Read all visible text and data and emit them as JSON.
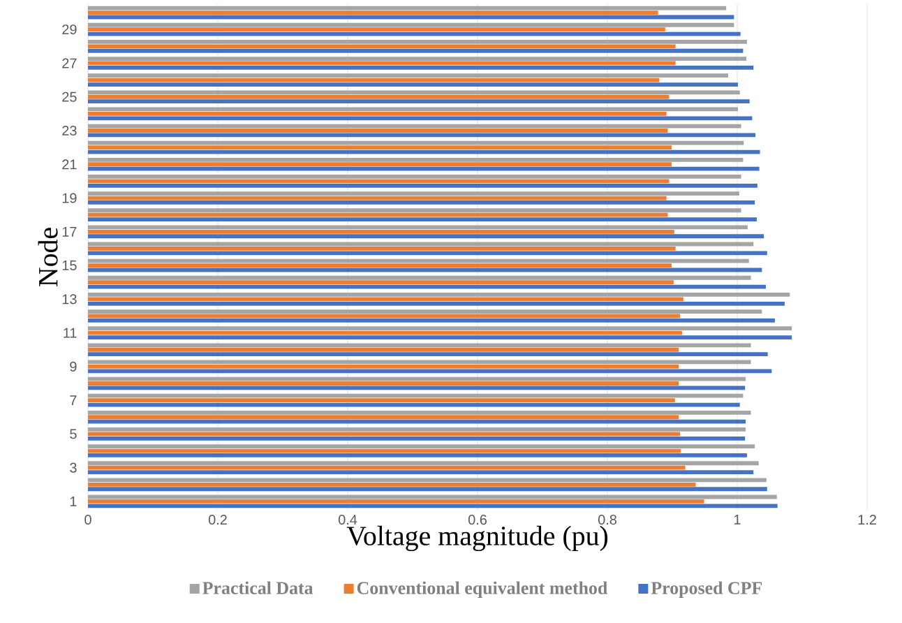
{
  "chart_data": {
    "type": "bar",
    "orientation": "horizontal",
    "xlabel": "Voltage magnitude (pu)",
    "ylabel": "Node",
    "categories": [
      null,
      "29",
      null,
      "27",
      null,
      "25",
      null,
      "23",
      null,
      "21",
      null,
      "19",
      null,
      "17",
      null,
      "15",
      null,
      "13",
      null,
      "11",
      null,
      "9",
      null,
      "7",
      null,
      "5",
      null,
      "3",
      null,
      "1"
    ],
    "series": [
      {
        "name": "Practical Data",
        "color": "#a5a5a5",
        "values": [
          0.983,
          0.995,
          1.015,
          1.014,
          0.986,
          1.004,
          1.001,
          1.006,
          1.01,
          1.009,
          1.006,
          1.003,
          1.006,
          1.016,
          1.025,
          1.018,
          1.021,
          1.081,
          1.038,
          1.084,
          1.021,
          1.021,
          1.013,
          1.009,
          1.021,
          1.013,
          1.027,
          1.033,
          1.045,
          1.061
        ]
      },
      {
        "name": "Conventional equivalent method",
        "color": "#ed7d31",
        "values": [
          0.878,
          0.889,
          0.905,
          0.905,
          0.88,
          0.895,
          0.891,
          0.893,
          0.899,
          0.899,
          0.895,
          0.891,
          0.893,
          0.903,
          0.905,
          0.899,
          0.902,
          0.917,
          0.912,
          0.915,
          0.91,
          0.91,
          0.91,
          0.904,
          0.91,
          0.912,
          0.913,
          0.92,
          0.936,
          0.949
        ]
      },
      {
        "name": "Proposed CPF",
        "color": "#4472c4",
        "values": [
          0.995,
          1.005,
          1.009,
          1.025,
          1.001,
          1.019,
          1.023,
          1.028,
          1.035,
          1.034,
          1.031,
          1.027,
          1.03,
          1.041,
          1.046,
          1.038,
          1.044,
          1.073,
          1.058,
          1.084,
          1.047,
          1.053,
          1.012,
          1.004,
          1.013,
          1.012,
          1.015,
          1.025,
          1.046,
          1.062
        ]
      }
    ],
    "xlim": [
      0,
      1.2
    ],
    "xticks": [
      0,
      0.2,
      0.4,
      0.6,
      0.8,
      1,
      1.2
    ],
    "grid": "x",
    "legend": "bottom"
  }
}
